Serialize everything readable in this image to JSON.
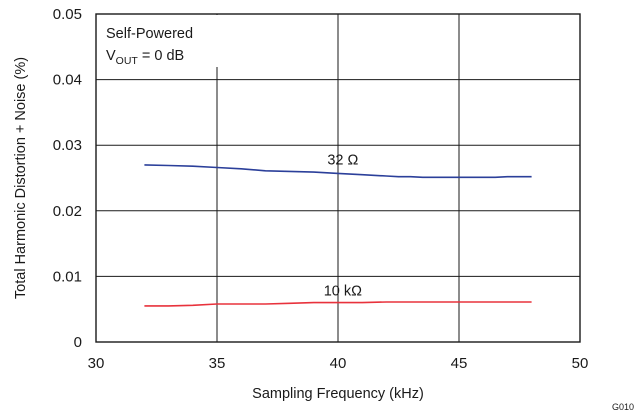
{
  "chart_data": {
    "type": "line",
    "xlabel": "Sampling Frequency (kHz)",
    "ylabel": "Total Harmonic Distortion + Noise (%)",
    "xlim": [
      30,
      50
    ],
    "ylim": [
      0,
      0.05
    ],
    "xticks": [
      "30",
      "35",
      "40",
      "45",
      "50"
    ],
    "yticks": [
      "0",
      "0.01",
      "0.02",
      "0.03",
      "0.04",
      "0.05"
    ],
    "grid": true,
    "annotation": {
      "line1": "Self-Powered",
      "line2_main": "V",
      "line2_sub": "OUT",
      "line2_rest": " = 0 dB"
    },
    "series": [
      {
        "name": "32 Ω",
        "color": "#2b3f9a",
        "x": [
          32,
          33,
          34,
          35,
          36,
          37,
          38,
          39,
          40,
          41,
          42,
          42.5,
          43,
          43.5,
          44,
          45,
          46,
          46.5,
          47,
          48
        ],
        "y": [
          0.027,
          0.0269,
          0.0268,
          0.0266,
          0.0264,
          0.0261,
          0.026,
          0.0259,
          0.0257,
          0.0255,
          0.0253,
          0.0252,
          0.0252,
          0.0251,
          0.0251,
          0.0251,
          0.0251,
          0.0251,
          0.0252,
          0.0252
        ]
      },
      {
        "name": "10 kΩ",
        "color": "#e8323c",
        "x": [
          32,
          33,
          34,
          35,
          36,
          37,
          38,
          39,
          40,
          41,
          42,
          43,
          44,
          45,
          46,
          47,
          48
        ],
        "y": [
          0.0055,
          0.0055,
          0.0056,
          0.0058,
          0.0058,
          0.0058,
          0.0059,
          0.006,
          0.006,
          0.006,
          0.0061,
          0.0061,
          0.0061,
          0.0061,
          0.0061,
          0.0061,
          0.0061
        ]
      }
    ],
    "figure_id": "G010"
  }
}
